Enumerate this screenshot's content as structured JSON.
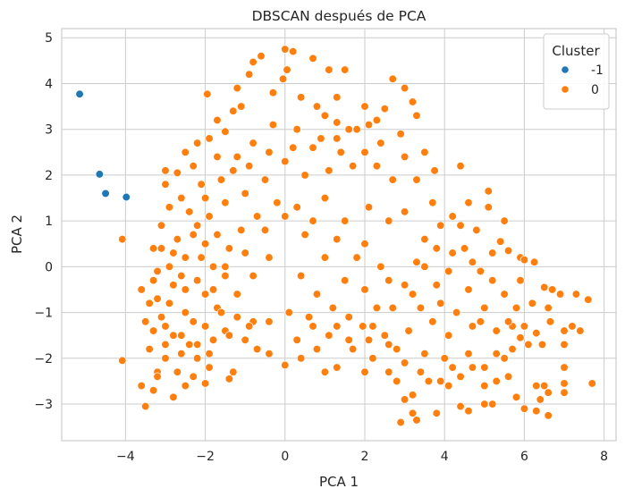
{
  "chart_data": {
    "type": "scatter",
    "title": "DBSCAN después de PCA",
    "xlabel": "PCA 1",
    "ylabel": "PCA 2",
    "xlim": [
      -5.6,
      8.3
    ],
    "ylim": [
      -3.8,
      5.2
    ],
    "xticks": [
      -4,
      -2,
      0,
      2,
      4,
      6,
      8
    ],
    "yticks": [
      -3,
      -2,
      -1,
      0,
      1,
      2,
      3,
      4,
      5
    ],
    "xtick_labels": [
      "−4",
      "−2",
      "0",
      "2",
      "4",
      "6",
      "8"
    ],
    "ytick_labels": [
      "−3",
      "−2",
      "−1",
      "0",
      "1",
      "2",
      "3",
      "4",
      "5"
    ],
    "grid": true,
    "legend": {
      "title": "Cluster",
      "placement": "top-right"
    },
    "series": [
      {
        "name": "-1",
        "color": "#1f77b4",
        "points": [
          [
            -5.15,
            3.77
          ],
          [
            -4.65,
            2.02
          ],
          [
            -4.5,
            1.6
          ],
          [
            -3.98,
            1.52
          ]
        ]
      },
      {
        "name": "0",
        "color": "#ff7f0e",
        "points": [
          [
            -4.08,
            0.6
          ],
          [
            -4.08,
            -2.05
          ],
          [
            -3.6,
            -2.6
          ],
          [
            -3.5,
            -3.05
          ],
          [
            -3.3,
            -2.7
          ],
          [
            -3.2,
            -2.3
          ],
          [
            -3.4,
            -0.8
          ],
          [
            -3.3,
            -1.4
          ],
          [
            -3.1,
            0.9
          ],
          [
            -3.0,
            1.8
          ],
          [
            -2.7,
            2.05
          ],
          [
            -2.5,
            2.5
          ],
          [
            -2.2,
            2.7
          ],
          [
            -1.9,
            2.8
          ],
          [
            -1.95,
            3.77
          ],
          [
            -1.7,
            3.2
          ],
          [
            -1.5,
            2.95
          ],
          [
            -1.3,
            3.4
          ],
          [
            -1.1,
            3.5
          ],
          [
            -1.2,
            3.9
          ],
          [
            -0.9,
            4.2
          ],
          [
            -0.8,
            4.47
          ],
          [
            -0.6,
            4.6
          ],
          [
            -0.3,
            3.8
          ],
          [
            -0.05,
            4.1
          ],
          [
            0.0,
            4.75
          ],
          [
            0.2,
            4.7
          ],
          [
            0.05,
            4.3
          ],
          [
            0.4,
            3.7
          ],
          [
            0.7,
            4.55
          ],
          [
            0.8,
            3.5
          ],
          [
            1.0,
            3.3
          ],
          [
            1.1,
            4.3
          ],
          [
            1.3,
            3.7
          ],
          [
            1.3,
            3.15
          ],
          [
            1.3,
            2.8
          ],
          [
            1.5,
            4.3
          ],
          [
            1.6,
            3.0
          ],
          [
            1.8,
            3.0
          ],
          [
            2.0,
            3.5
          ],
          [
            2.1,
            3.1
          ],
          [
            2.3,
            3.2
          ],
          [
            2.4,
            2.7
          ],
          [
            2.5,
            3.45
          ],
          [
            2.7,
            4.1
          ],
          [
            2.9,
            2.9
          ],
          [
            3.0,
            3.9
          ],
          [
            3.2,
            3.6
          ],
          [
            3.3,
            3.3
          ],
          [
            3.5,
            2.5
          ],
          [
            3.75,
            2.1
          ],
          [
            4.4,
            2.2
          ],
          [
            4.2,
            1.1
          ],
          [
            4.4,
            0.9
          ],
          [
            4.6,
            1.4
          ],
          [
            5.1,
            1.3
          ],
          [
            5.1,
            1.65
          ],
          [
            5.4,
            0.55
          ],
          [
            5.6,
            0.35
          ],
          [
            5.9,
            0.2
          ],
          [
            6.0,
            0.15
          ],
          [
            6.25,
            0.1
          ],
          [
            6.5,
            -0.45
          ],
          [
            6.7,
            -0.5
          ],
          [
            6.9,
            -0.6
          ],
          [
            7.3,
            -0.6
          ],
          [
            7.6,
            -0.72
          ],
          [
            6.6,
            -0.9
          ],
          [
            6.65,
            -1.2
          ],
          [
            6.3,
            -1.45
          ],
          [
            7.2,
            -1.3
          ],
          [
            7.4,
            -1.4
          ],
          [
            7.0,
            -1.4
          ],
          [
            7.0,
            -1.7
          ],
          [
            6.1,
            -1.7
          ],
          [
            6.45,
            -1.7
          ],
          [
            5.9,
            -1.55
          ],
          [
            5.7,
            -1.3
          ],
          [
            5.7,
            -1.8
          ],
          [
            7.0,
            -2.2
          ],
          [
            7.7,
            -2.55
          ],
          [
            7.0,
            -2.55
          ],
          [
            7.0,
            -2.75
          ],
          [
            6.3,
            -2.6
          ],
          [
            6.5,
            -2.6
          ],
          [
            6.6,
            -2.75
          ],
          [
            6.4,
            -2.9
          ],
          [
            6.0,
            -3.1
          ],
          [
            6.3,
            -3.15
          ],
          [
            6.6,
            -3.25
          ],
          [
            5.8,
            -2.85
          ],
          [
            5.6,
            -2.4
          ],
          [
            5.5,
            -2.0
          ],
          [
            5.3,
            -2.5
          ],
          [
            5.0,
            -2.6
          ],
          [
            5.2,
            -3.0
          ],
          [
            5.0,
            -3.0
          ],
          [
            4.6,
            -3.15
          ],
          [
            4.4,
            -3.05
          ],
          [
            4.9,
            -1.2
          ],
          [
            5.3,
            -1.4
          ],
          [
            4.1,
            -2.6
          ],
          [
            3.8,
            -3.2
          ],
          [
            3.6,
            -2.5
          ],
          [
            3.2,
            -2.8
          ],
          [
            3.2,
            -3.2
          ],
          [
            3.0,
            -2.9
          ],
          [
            2.9,
            -3.4
          ],
          [
            3.3,
            -3.35
          ],
          [
            2.8,
            -2.5
          ],
          [
            2.6,
            -2.3
          ],
          [
            2.2,
            -2.0
          ],
          [
            2.0,
            -2.3
          ],
          [
            1.95,
            -1.3
          ],
          [
            1.3,
            -2.2
          ],
          [
            1.0,
            -2.3
          ],
          [
            0.8,
            -1.8
          ],
          [
            0.4,
            -2.0
          ],
          [
            0.0,
            -2.15
          ],
          [
            -0.4,
            -1.9
          ],
          [
            -1.0,
            -1.6
          ],
          [
            -1.4,
            -2.45
          ],
          [
            -1.3,
            -2.3
          ],
          [
            -2.0,
            -2.55
          ],
          [
            -2.2,
            -2.0
          ],
          [
            -2.5,
            -2.6
          ],
          [
            -2.8,
            -2.85
          ],
          [
            -1.7,
            -0.9
          ],
          [
            -1.5,
            -1.4
          ],
          [
            -1.2,
            -1.1
          ],
          [
            -0.7,
            -1.8
          ],
          [
            -0.8,
            -1.2
          ],
          [
            0.3,
            -1.6
          ],
          [
            0.7,
            -1.3
          ],
          [
            1.3,
            -1.3
          ],
          [
            1.7,
            -1.8
          ],
          [
            2.5,
            -1.5
          ],
          [
            2.8,
            -1.8
          ],
          [
            2.3,
            -0.9
          ],
          [
            3.0,
            -0.4
          ],
          [
            3.4,
            -0.9
          ],
          [
            3.7,
            -1.2
          ],
          [
            3.1,
            -1.4
          ],
          [
            2.1,
            1.3
          ],
          [
            2.6,
            1.0
          ],
          [
            3.0,
            1.2
          ],
          [
            3.5,
            0.6
          ],
          [
            3.3,
            0.1
          ],
          [
            3.8,
            -0.4
          ],
          [
            4.1,
            -0.1
          ],
          [
            4.2,
            0.3
          ],
          [
            4.6,
            -0.5
          ],
          [
            4.9,
            -0.1
          ],
          [
            5.0,
            -0.9
          ],
          [
            4.1,
            -1.5
          ],
          [
            4.6,
            -1.9
          ],
          [
            4.0,
            -2.0
          ],
          [
            3.0,
            2.4
          ],
          [
            2.7,
            1.9
          ],
          [
            2.0,
            2.5
          ],
          [
            1.7,
            2.2
          ],
          [
            1.1,
            2.1
          ],
          [
            0.7,
            2.6
          ],
          [
            0.3,
            3.0
          ],
          [
            -0.3,
            3.1
          ],
          [
            -0.8,
            2.7
          ],
          [
            -1.2,
            2.4
          ],
          [
            -1.7,
            2.4
          ],
          [
            -2.1,
            1.8
          ],
          [
            -2.6,
            1.5
          ],
          [
            -2.9,
            1.3
          ],
          [
            -3.1,
            0.4
          ],
          [
            -3.2,
            -0.1
          ],
          [
            -3.3,
            -0.3
          ],
          [
            -3.6,
            -0.5
          ],
          [
            -3.5,
            -1.2
          ],
          [
            -3.4,
            -1.8
          ],
          [
            -3.1,
            -1.1
          ],
          [
            -2.8,
            -0.4
          ],
          [
            -2.5,
            0.2
          ],
          [
            -2.3,
            0.7
          ],
          [
            -1.9,
            1.1
          ],
          [
            -1.5,
            1.4
          ],
          [
            -1.0,
            1.6
          ],
          [
            -0.5,
            1.9
          ],
          [
            0.0,
            2.3
          ],
          [
            0.5,
            2.0
          ],
          [
            1.0,
            1.5
          ],
          [
            1.5,
            1.0
          ],
          [
            2.0,
            0.5
          ],
          [
            2.4,
            0.0
          ],
          [
            2.0,
            -0.5
          ],
          [
            1.5,
            -0.3
          ],
          [
            1.0,
            0.2
          ],
          [
            0.5,
            0.7
          ],
          [
            0.0,
            1.1
          ],
          [
            -0.5,
            0.8
          ],
          [
            -1.0,
            0.3
          ],
          [
            -1.5,
            -0.2
          ],
          [
            -2.0,
            -0.6
          ],
          [
            -2.5,
            -1.0
          ],
          [
            -2.8,
            -1.5
          ],
          [
            -2.4,
            -1.7
          ],
          [
            -2.0,
            -1.3
          ],
          [
            -1.6,
            -1.0
          ],
          [
            -1.2,
            -0.6
          ],
          [
            -0.8,
            -0.2
          ],
          [
            -0.4,
            0.2
          ],
          [
            0.4,
            -0.2
          ],
          [
            0.8,
            -0.6
          ],
          [
            1.2,
            -0.9
          ],
          [
            1.6,
            -1.1
          ],
          [
            2.2,
            -1.3
          ],
          [
            2.7,
            -0.9
          ],
          [
            3.2,
            -0.6
          ],
          [
            3.9,
            -0.8
          ],
          [
            4.3,
            -1.0
          ],
          [
            4.7,
            -1.3
          ],
          [
            5.5,
            -0.6
          ],
          [
            5.8,
            -0.9
          ],
          [
            4.4,
            -2.4
          ],
          [
            3.5,
            -1.9
          ],
          [
            -3.0,
            -2.0
          ],
          [
            -2.7,
            -2.3
          ],
          [
            -2.3,
            -2.4
          ],
          [
            -1.9,
            -2.2
          ],
          [
            -3.0,
            2.1
          ],
          [
            -2.3,
            2.2
          ],
          [
            -2.0,
            1.5
          ],
          [
            -1.6,
            1.9
          ],
          [
            -1.3,
            2.1
          ],
          [
            -0.9,
            2.2
          ],
          [
            -0.4,
            2.5
          ],
          [
            0.2,
            2.6
          ],
          [
            0.9,
            2.8
          ],
          [
            1.4,
            2.5
          ],
          [
            2.3,
            2.2
          ],
          [
            3.3,
            1.9
          ],
          [
            3.7,
            1.4
          ],
          [
            3.9,
            0.9
          ],
          [
            4.5,
            0.4
          ],
          [
            5.2,
            0.3
          ],
          [
            5.5,
            1.0
          ],
          [
            4.8,
            0.8
          ],
          [
            -3.1,
            0.9
          ],
          [
            -3.3,
            0.4
          ],
          [
            -2.9,
            0.0
          ],
          [
            -2.6,
            -0.2
          ],
          [
            -2.2,
            -0.3
          ],
          [
            -1.8,
            0.0
          ],
          [
            -1.4,
            0.4
          ],
          [
            -1.1,
            0.8
          ],
          [
            -0.7,
            1.1
          ],
          [
            -0.2,
            1.4
          ],
          [
            0.3,
            1.3
          ],
          [
            0.7,
            1.0
          ],
          [
            1.3,
            0.6
          ],
          [
            1.8,
            0.2
          ],
          [
            2.6,
            -0.3
          ],
          [
            3.5,
            0.0
          ],
          [
            3.8,
            0.4
          ],
          [
            -3.2,
            -0.7
          ],
          [
            -3.0,
            -1.3
          ],
          [
            -2.6,
            -1.5
          ],
          [
            -2.2,
            -1.7
          ],
          [
            -1.8,
            -1.6
          ],
          [
            -1.4,
            -1.5
          ],
          [
            -0.9,
            -1.3
          ],
          [
            -0.4,
            -1.2
          ],
          [
            0.1,
            -1.0
          ],
          [
            0.6,
            -1.1
          ],
          [
            1.1,
            -1.5
          ],
          [
            1.6,
            -1.6
          ],
          [
            2.1,
            -1.6
          ],
          [
            2.6,
            -1.7
          ],
          [
            3.0,
            -2.1
          ],
          [
            3.4,
            -2.3
          ],
          [
            3.9,
            -2.5
          ],
          [
            4.2,
            -2.2
          ],
          [
            4.7,
            -2.2
          ],
          [
            5.0,
            -2.2
          ],
          [
            5.3,
            -1.9
          ],
          [
            5.6,
            -1.2
          ],
          [
            6.0,
            -1.3
          ],
          [
            6.2,
            -0.8
          ],
          [
            5.9,
            -0.3
          ],
          [
            5.2,
            -0.3
          ],
          [
            4.7,
            0.1
          ],
          [
            -2.4,
            1.2
          ],
          [
            -2.0,
            0.5
          ],
          [
            -1.7,
            0.7
          ],
          [
            -2.7,
            0.6
          ],
          [
            -2.9,
            -0.8
          ],
          [
            -2.3,
            -1.2
          ],
          [
            -1.9,
            -1.9
          ],
          [
            -2.6,
            -1.9
          ],
          [
            -3.2,
            -2.4
          ],
          [
            -2.1,
            0.2
          ],
          [
            -2.5,
            -0.5
          ],
          [
            -2.8,
            0.3
          ],
          [
            -1.8,
            -0.5
          ],
          [
            -1.5,
            0.0
          ],
          [
            -2.2,
            0.9
          ],
          [
            -3.0,
            -1.7
          ]
        ]
      }
    ]
  }
}
